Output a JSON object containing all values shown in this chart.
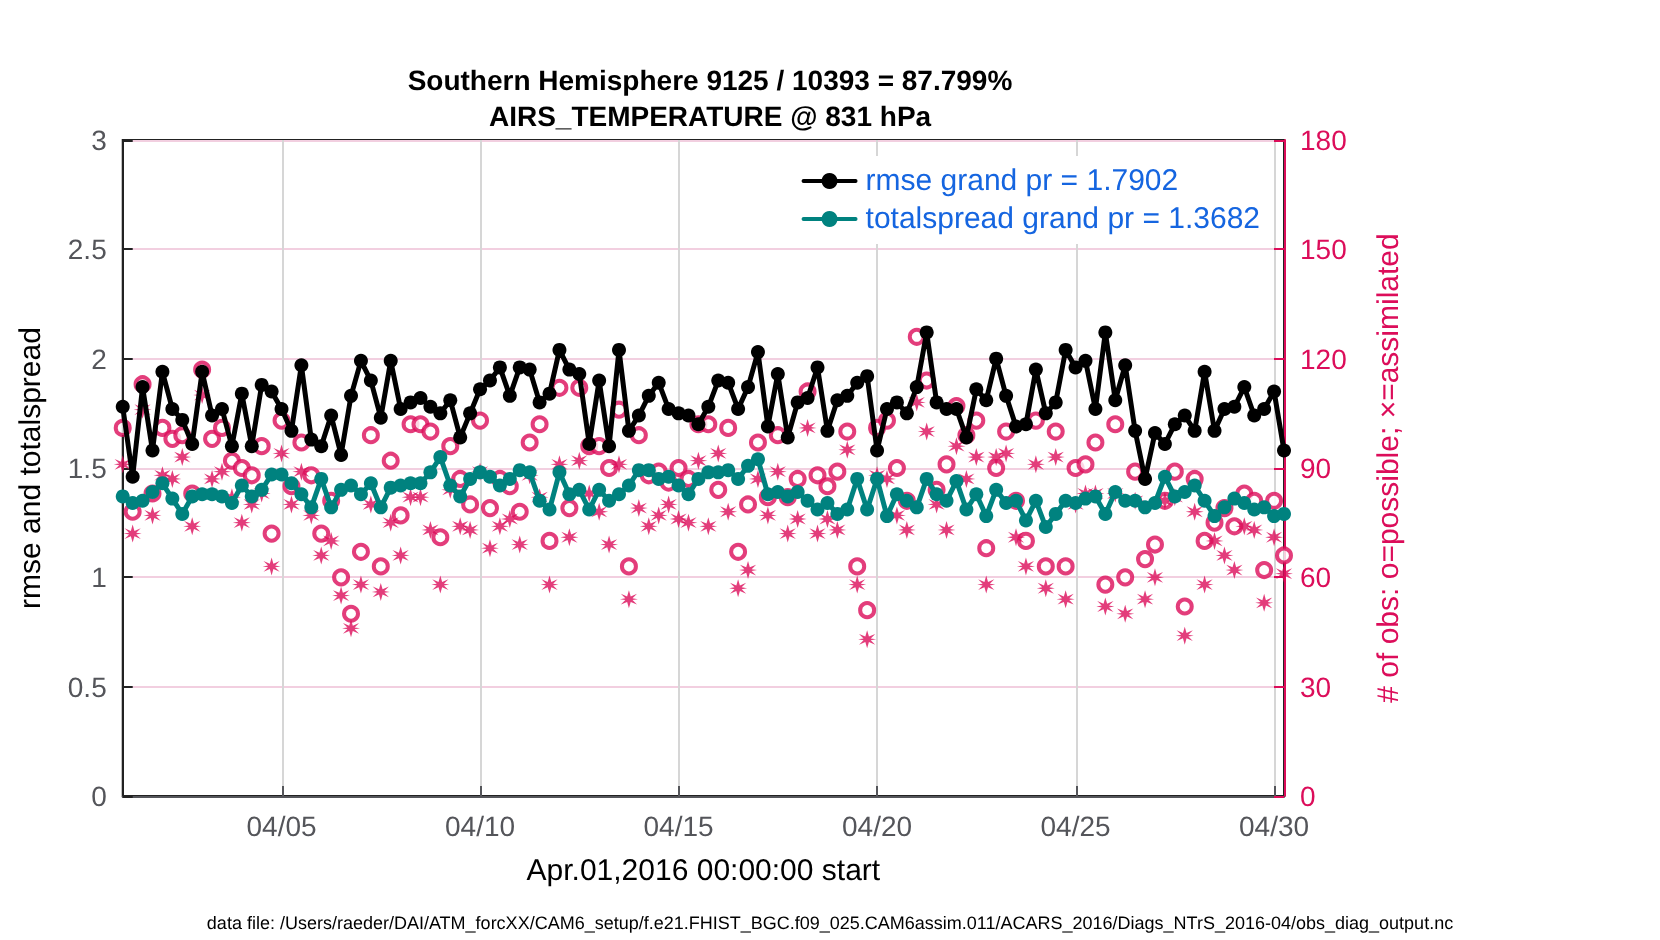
{
  "chart_data": {
    "type": "line",
    "title": "Southern Hemisphere 9125 / 10393 = 87.799%",
    "subtitle": "AIRS_TEMPERATURE @ 831 hPa",
    "xlabel": "Apr.01,2016 00:00:00 start",
    "ylabel": "rmse and totalspread",
    "y2label": "# of obs: o=possible; ×=assimilated",
    "annotations": [
      "data file: /Users/raeder/DAI/ATM_forcXX/CAM6_setup/f.e21.FHIST_BGC.f09_025.CAM6assim.011/ACARS_2016/Diags_NTrS_2016-04/obs_diag_output.nc"
    ],
    "x": [
      "2016-04-01T00:00",
      "2016-04-01T06:00",
      "2016-04-01T12:00",
      "2016-04-01T18:00",
      "2016-04-02T00:00",
      "2016-04-02T06:00",
      "2016-04-02T12:00",
      "2016-04-02T18:00",
      "2016-04-03T00:00",
      "2016-04-03T06:00",
      "2016-04-03T12:00",
      "2016-04-03T18:00",
      "2016-04-04T00:00",
      "2016-04-04T06:00",
      "2016-04-04T12:00",
      "2016-04-04T18:00",
      "2016-04-05T00:00",
      "2016-04-05T06:00",
      "2016-04-05T12:00",
      "2016-04-05T18:00",
      "2016-04-06T00:00",
      "2016-04-06T06:00",
      "2016-04-06T12:00",
      "2016-04-06T18:00",
      "2016-04-07T00:00",
      "2016-04-07T06:00",
      "2016-04-07T12:00",
      "2016-04-07T18:00",
      "2016-04-08T00:00",
      "2016-04-08T06:00",
      "2016-04-08T12:00",
      "2016-04-08T18:00",
      "2016-04-09T00:00",
      "2016-04-09T06:00",
      "2016-04-09T12:00",
      "2016-04-09T18:00",
      "2016-04-10T00:00",
      "2016-04-10T06:00",
      "2016-04-10T12:00",
      "2016-04-10T18:00",
      "2016-04-11T00:00",
      "2016-04-11T06:00",
      "2016-04-11T12:00",
      "2016-04-11T18:00",
      "2016-04-12T00:00",
      "2016-04-12T06:00",
      "2016-04-12T12:00",
      "2016-04-12T18:00",
      "2016-04-13T00:00",
      "2016-04-13T06:00",
      "2016-04-13T12:00",
      "2016-04-13T18:00",
      "2016-04-14T00:00",
      "2016-04-14T06:00",
      "2016-04-14T12:00",
      "2016-04-14T18:00",
      "2016-04-15T00:00",
      "2016-04-15T06:00",
      "2016-04-15T12:00",
      "2016-04-15T18:00",
      "2016-04-16T00:00",
      "2016-04-16T06:00",
      "2016-04-16T12:00",
      "2016-04-16T18:00",
      "2016-04-17T00:00",
      "2016-04-17T06:00",
      "2016-04-17T12:00",
      "2016-04-17T18:00",
      "2016-04-18T00:00",
      "2016-04-18T06:00",
      "2016-04-18T12:00",
      "2016-04-18T18:00",
      "2016-04-19T00:00",
      "2016-04-19T06:00",
      "2016-04-19T12:00",
      "2016-04-19T18:00",
      "2016-04-20T00:00",
      "2016-04-20T06:00",
      "2016-04-20T12:00",
      "2016-04-20T18:00",
      "2016-04-21T00:00",
      "2016-04-21T06:00",
      "2016-04-21T12:00",
      "2016-04-21T18:00",
      "2016-04-22T00:00",
      "2016-04-22T06:00",
      "2016-04-22T12:00",
      "2016-04-22T18:00",
      "2016-04-23T00:00",
      "2016-04-23T06:00",
      "2016-04-23T12:00",
      "2016-04-23T18:00",
      "2016-04-24T00:00",
      "2016-04-24T06:00",
      "2016-04-24T12:00",
      "2016-04-24T18:00",
      "2016-04-25T00:00",
      "2016-04-25T06:00",
      "2016-04-25T12:00",
      "2016-04-25T18:00",
      "2016-04-26T00:00",
      "2016-04-26T06:00",
      "2016-04-26T12:00",
      "2016-04-26T18:00",
      "2016-04-27T00:00",
      "2016-04-27T06:00",
      "2016-04-27T12:00",
      "2016-04-27T18:00",
      "2016-04-28T00:00",
      "2016-04-28T06:00",
      "2016-04-28T12:00",
      "2016-04-28T18:00",
      "2016-04-29T00:00",
      "2016-04-29T06:00",
      "2016-04-29T12:00",
      "2016-04-29T18:00",
      "2016-04-30T00:00",
      "2016-04-30T06:00"
    ],
    "series": [
      {
        "name": "rmse grand pr = 1.7902",
        "color": "#000000",
        "marker": "circle",
        "line_style": "solid",
        "values": [
          1.78,
          1.46,
          1.87,
          1.58,
          1.94,
          1.77,
          1.72,
          1.61,
          1.94,
          1.74,
          1.77,
          1.6,
          1.84,
          1.6,
          1.88,
          1.85,
          1.77,
          1.67,
          1.97,
          1.63,
          1.6,
          1.74,
          1.56,
          1.83,
          1.99,
          1.9,
          1.73,
          1.99,
          1.77,
          1.8,
          1.82,
          1.78,
          1.75,
          1.81,
          1.64,
          1.75,
          1.86,
          1.9,
          1.96,
          1.83,
          1.96,
          1.95,
          1.8,
          1.84,
          2.04,
          1.95,
          1.93,
          1.61,
          1.9,
          1.6,
          2.04,
          1.67,
          1.74,
          1.83,
          1.89,
          1.77,
          1.75,
          1.74,
          1.7,
          1.78,
          1.9,
          1.89,
          1.77,
          1.87,
          2.03,
          1.69,
          1.93,
          1.64,
          1.8,
          1.82,
          1.96,
          1.67,
          1.81,
          1.83,
          1.89,
          1.92,
          1.58,
          1.77,
          1.8,
          1.75,
          1.87,
          2.12,
          1.8,
          1.77,
          1.77,
          1.64,
          1.86,
          1.81,
          2.0,
          1.83,
          1.69,
          1.7,
          1.95,
          1.75,
          1.8,
          2.04,
          1.96,
          1.99,
          1.77,
          2.12,
          1.81,
          1.97,
          1.67,
          1.45,
          1.66,
          1.61,
          1.7,
          1.74,
          1.67,
          1.94,
          1.67,
          1.77,
          1.78,
          1.87,
          1.74,
          1.77,
          1.85,
          1.58
        ]
      },
      {
        "name": "totalspread grand pr = 1.3682",
        "color": "#00827f",
        "marker": "circle",
        "line_style": "solid",
        "values": [
          1.37,
          1.34,
          1.35,
          1.39,
          1.43,
          1.36,
          1.29,
          1.37,
          1.38,
          1.38,
          1.37,
          1.34,
          1.42,
          1.37,
          1.4,
          1.47,
          1.47,
          1.43,
          1.38,
          1.32,
          1.45,
          1.32,
          1.4,
          1.42,
          1.38,
          1.43,
          1.32,
          1.41,
          1.42,
          1.43,
          1.43,
          1.48,
          1.55,
          1.42,
          1.37,
          1.45,
          1.48,
          1.46,
          1.42,
          1.45,
          1.49,
          1.48,
          1.35,
          1.31,
          1.48,
          1.38,
          1.4,
          1.31,
          1.4,
          1.35,
          1.38,
          1.42,
          1.49,
          1.49,
          1.45,
          1.46,
          1.42,
          1.38,
          1.45,
          1.48,
          1.48,
          1.49,
          1.45,
          1.51,
          1.54,
          1.38,
          1.39,
          1.37,
          1.39,
          1.35,
          1.31,
          1.34,
          1.29,
          1.31,
          1.45,
          1.31,
          1.45,
          1.28,
          1.38,
          1.35,
          1.32,
          1.45,
          1.38,
          1.35,
          1.44,
          1.31,
          1.38,
          1.28,
          1.4,
          1.34,
          1.35,
          1.26,
          1.35,
          1.23,
          1.29,
          1.35,
          1.34,
          1.36,
          1.37,
          1.29,
          1.39,
          1.35,
          1.35,
          1.32,
          1.34,
          1.46,
          1.37,
          1.39,
          1.42,
          1.35,
          1.28,
          1.32,
          1.36,
          1.34,
          1.31,
          1.32,
          1.28,
          1.29
        ]
      },
      {
        "color": "#dc0d5a",
        "type": "scatter",
        "axis": "y2",
        "marker": "circle",
        "values": [
          101,
          78,
          113,
          83,
          101,
          98,
          99,
          83,
          117,
          98,
          101,
          92,
          90,
          88,
          96,
          72,
          103,
          85,
          97,
          88,
          72,
          81,
          60,
          50,
          67,
          99,
          63,
          92,
          77,
          102,
          102,
          100,
          71,
          96,
          87,
          80,
          103,
          79,
          87,
          85,
          78,
          97,
          102,
          70,
          112,
          79,
          112,
          96,
          96,
          90,
          106,
          63,
          99,
          88,
          89,
          86,
          90,
          87,
          102,
          102,
          84,
          101,
          67,
          80,
          97,
          82,
          99,
          82,
          87,
          111,
          88,
          85,
          89,
          100,
          63,
          51,
          101,
          103,
          90,
          81,
          126,
          114,
          84,
          91,
          107,
          99,
          103,
          68,
          90,
          100,
          81,
          70,
          103,
          63,
          100,
          63,
          90,
          91,
          97,
          58,
          102,
          60,
          89,
          65,
          69,
          81,
          89,
          52,
          87,
          70,
          75,
          79,
          74,
          83,
          81,
          62,
          81,
          66
        ]
      },
      {
        "color": "#dc0d5a",
        "type": "scatter",
        "axis": "y2",
        "marker": "star",
        "values": [
          91,
          72,
          106,
          77,
          88,
          87,
          93,
          74,
          110,
          87,
          89,
          82,
          75,
          80,
          83,
          63,
          94,
          80,
          89,
          77,
          66,
          70,
          55,
          46,
          58,
          80,
          56,
          75,
          66,
          82,
          82,
          73,
          58,
          84,
          74,
          73,
          89,
          68,
          74,
          76,
          69,
          88,
          82,
          58,
          91,
          71,
          92,
          83,
          78,
          69,
          91,
          54,
          79,
          74,
          77,
          80,
          76,
          75,
          92,
          74,
          94,
          78,
          57,
          62,
          87,
          77,
          89,
          72,
          76,
          101,
          72,
          76,
          73,
          95,
          58,
          43,
          88,
          87,
          77,
          73,
          108,
          100,
          80,
          73,
          96,
          87,
          93,
          58,
          93,
          94,
          71,
          63,
          91,
          57,
          93,
          54,
          80,
          83,
          83,
          52,
          83,
          50,
          81,
          54,
          60,
          81,
          82,
          44,
          78,
          58,
          70,
          66,
          62,
          74,
          73,
          53,
          71,
          61
        ]
      }
    ],
    "xlim": [
      "2016-04-01T00:00",
      "2016-04-30T06:00"
    ],
    "xticks": [
      {
        "value": "2016-04-05",
        "label": "04/05"
      },
      {
        "value": "2016-04-10",
        "label": "04/10"
      },
      {
        "value": "2016-04-15",
        "label": "04/15"
      },
      {
        "value": "2016-04-20",
        "label": "04/20"
      },
      {
        "value": "2016-04-25",
        "label": "04/25"
      },
      {
        "value": "2016-04-30",
        "label": "04/30"
      }
    ],
    "ylim": [
      0,
      3
    ],
    "yticks": [
      0,
      0.5,
      1,
      1.5,
      2,
      2.5,
      3
    ],
    "y2lim": [
      0,
      180
    ],
    "y2ticks": [
      0,
      30,
      60,
      90,
      120,
      150,
      180
    ],
    "grid": true,
    "legend": "top right"
  }
}
